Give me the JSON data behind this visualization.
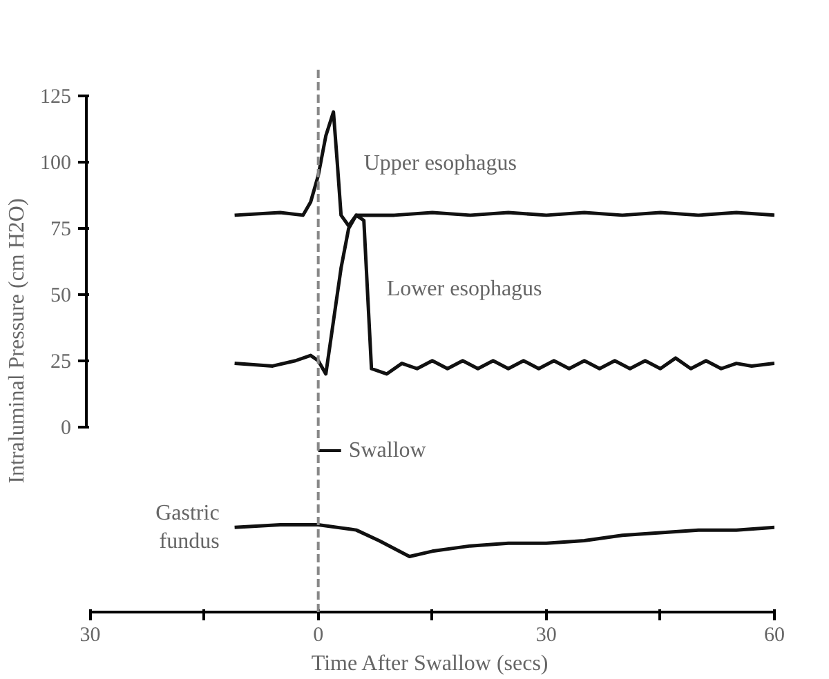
{
  "chart_data": {
    "type": "line",
    "xlabel": "Time After Swallow (secs)",
    "ylabel": "Intraluminal Pressure (cm H2O)",
    "xlim": [
      -30.5,
      60
    ],
    "ylim": [
      -70,
      135
    ],
    "xticks": [
      {
        "value": -30,
        "label": "30"
      },
      {
        "value": -15,
        "label": null
      },
      0,
      {
        "value": 15,
        "label": null
      },
      30,
      {
        "value": 45,
        "label": null
      },
      60
    ],
    "yticks": [
      0,
      25,
      50,
      75,
      100,
      125
    ],
    "grid": false,
    "marker": "none",
    "line_style": "solid",
    "series": [
      {
        "name": "Upper esophagus",
        "color": "#111111",
        "x": [
          -11,
          -5,
          -2,
          -1,
          0,
          1,
          2,
          2.5,
          3,
          4,
          5,
          10,
          15,
          20,
          25,
          30,
          35,
          40,
          45,
          50,
          55,
          60
        ],
        "values": [
          80,
          81,
          80,
          85,
          95,
          110,
          119,
          100,
          80,
          76,
          80,
          80,
          81,
          80,
          81,
          80,
          81,
          80,
          81,
          80,
          81,
          80
        ]
      },
      {
        "name": "Lower esophagus",
        "color": "#111111",
        "x": [
          -11,
          -6,
          -3,
          -1,
          0,
          1,
          2,
          3,
          4,
          5,
          6,
          7,
          9,
          11,
          13,
          15,
          17,
          19,
          21,
          23,
          25,
          27,
          29,
          31,
          33,
          35,
          37,
          39,
          41,
          43,
          45,
          47,
          49,
          51,
          53,
          55,
          57,
          60
        ],
        "values": [
          24,
          23,
          25,
          27,
          25,
          20,
          40,
          60,
          75,
          80,
          78,
          22,
          20,
          24,
          22,
          25,
          22,
          25,
          22,
          25,
          22,
          25,
          22,
          25,
          22,
          25,
          22,
          25,
          22,
          25,
          22,
          26,
          22,
          25,
          22,
          24,
          23,
          24
        ]
      },
      {
        "name": "Gastric fundus",
        "color": "#111111",
        "x": [
          -11,
          -5,
          0,
          5,
          8,
          12,
          15,
          20,
          25,
          30,
          35,
          40,
          45,
          50,
          55,
          60
        ],
        "values": [
          -38,
          -37,
          -37,
          -39,
          -43,
          -49,
          -47,
          -45,
          -44,
          -44,
          -43,
          -41,
          -40,
          -39,
          -39,
          -38
        ]
      }
    ],
    "ref_lines": [
      {
        "axis": "x",
        "value": 0,
        "color": "#888888",
        "line_style": "dashed"
      }
    ],
    "annotations": [
      {
        "text": "Swallow",
        "x": 0,
        "y": -9
      }
    ]
  }
}
